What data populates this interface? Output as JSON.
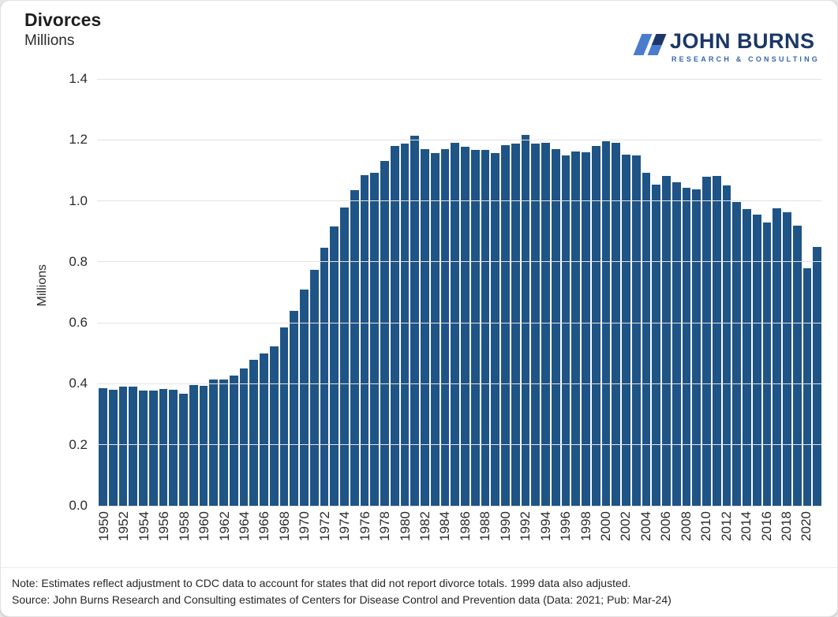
{
  "header": {
    "title": "Divorces",
    "subtitle": "Millions",
    "logo": {
      "name": "JOHN BURNS",
      "tagline": "RESEARCH & CONSULTING"
    }
  },
  "chart_data": {
    "type": "bar",
    "title": "Divorces",
    "ylabel": "Millions",
    "ylim": [
      0,
      1.4
    ],
    "ytick_step": 0.2,
    "grid": true,
    "legend": false,
    "xtick_label_every_years": 2,
    "bar_color": "#1f5486",
    "categories": [
      1950,
      1951,
      1952,
      1953,
      1954,
      1955,
      1956,
      1957,
      1958,
      1959,
      1960,
      1961,
      1962,
      1963,
      1964,
      1965,
      1966,
      1967,
      1968,
      1969,
      1970,
      1971,
      1972,
      1973,
      1974,
      1975,
      1976,
      1977,
      1978,
      1979,
      1980,
      1981,
      1982,
      1983,
      1984,
      1985,
      1986,
      1987,
      1988,
      1989,
      1990,
      1991,
      1992,
      1993,
      1994,
      1995,
      1996,
      1997,
      1998,
      1999,
      2000,
      2001,
      2002,
      2003,
      2004,
      2005,
      2006,
      2007,
      2008,
      2009,
      2010,
      2011,
      2012,
      2013,
      2014,
      2015,
      2016,
      2017,
      2018,
      2019,
      2020,
      2021
    ],
    "values": [
      0.385,
      0.381,
      0.392,
      0.39,
      0.379,
      0.377,
      0.382,
      0.381,
      0.368,
      0.395,
      0.393,
      0.414,
      0.413,
      0.428,
      0.45,
      0.479,
      0.499,
      0.523,
      0.584,
      0.639,
      0.708,
      0.773,
      0.845,
      0.915,
      0.977,
      1.036,
      1.083,
      1.091,
      1.13,
      1.181,
      1.189,
      1.213,
      1.17,
      1.158,
      1.169,
      1.19,
      1.178,
      1.166,
      1.167,
      1.157,
      1.182,
      1.187,
      1.215,
      1.187,
      1.191,
      1.169,
      1.15,
      1.163,
      1.16,
      1.179,
      1.196,
      1.191,
      1.151,
      1.148,
      1.093,
      1.053,
      1.081,
      1.061,
      1.043,
      1.039,
      1.078,
      1.082,
      1.052,
      0.996,
      0.973,
      0.956,
      0.928,
      0.976,
      0.962,
      0.918,
      0.78,
      0.85
    ]
  },
  "footer": {
    "note": "Note: Estimates reflect adjustment to CDC data to account for states that did not report divorce totals. 1999 data also adjusted.",
    "source": "Source: John Burns Research and Consulting estimates of Centers for Disease Control and Prevention data (Data: 2021; Pub: Mar-24)"
  },
  "colors": {
    "bar": "#1f5486",
    "gridline": "#e2e2e2",
    "axis_text": "#2b2b2b",
    "logo_navy": "#1c3769",
    "logo_blue": "#4a7ccd",
    "logo_steel": "#3465ae"
  }
}
